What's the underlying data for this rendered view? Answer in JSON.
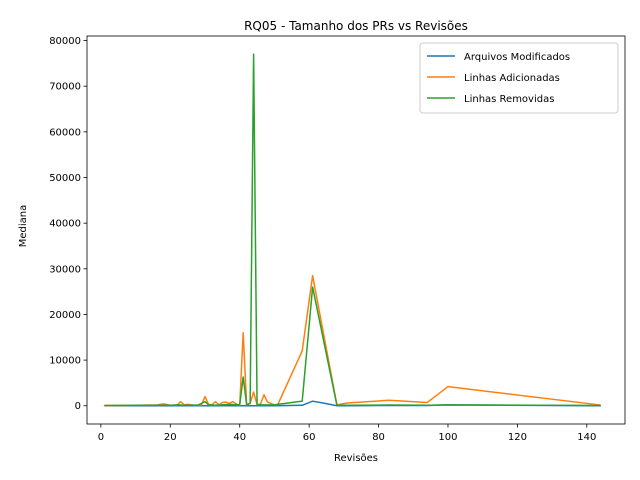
{
  "chart_data": {
    "type": "line",
    "title": "RQ05 - Tamanho dos PRs vs Revisões",
    "xlabel": "Revisões",
    "ylabel": "Mediana",
    "xlim": [
      -4,
      151
    ],
    "ylim": [
      -4000,
      81000
    ],
    "xticks": [
      0,
      20,
      40,
      60,
      80,
      100,
      120,
      140
    ],
    "yticks": [
      0,
      10000,
      20000,
      30000,
      40000,
      50000,
      60000,
      70000,
      80000
    ],
    "grid": false,
    "legend_position": "top-right",
    "series": [
      {
        "name": "Arquivos Modificados",
        "color": "#1f77b4",
        "points": [
          [
            1,
            0
          ],
          [
            10,
            0
          ],
          [
            20,
            0
          ],
          [
            30,
            0
          ],
          [
            40,
            0
          ],
          [
            44,
            0
          ],
          [
            50,
            0
          ],
          [
            58,
            100
          ],
          [
            61,
            1000
          ],
          [
            64,
            600
          ],
          [
            68,
            0
          ],
          [
            71,
            0
          ],
          [
            83,
            50
          ],
          [
            94,
            50
          ],
          [
            100,
            200
          ],
          [
            144,
            0
          ]
        ]
      },
      {
        "name": "Linhas Adicionadas",
        "color": "#ff7f0e",
        "points": [
          [
            1,
            50
          ],
          [
            10,
            100
          ],
          [
            16,
            150
          ],
          [
            18,
            400
          ],
          [
            20,
            100
          ],
          [
            22,
            150
          ],
          [
            23,
            900
          ],
          [
            24,
            200
          ],
          [
            25,
            300
          ],
          [
            27,
            100
          ],
          [
            29,
            200
          ],
          [
            30,
            2000
          ],
          [
            31,
            300
          ],
          [
            32,
            200
          ],
          [
            33,
            900
          ],
          [
            34,
            200
          ],
          [
            35,
            700
          ],
          [
            36,
            800
          ],
          [
            37,
            500
          ],
          [
            38,
            900
          ],
          [
            39,
            400
          ],
          [
            40,
            100
          ],
          [
            41,
            16000
          ],
          [
            42,
            200
          ],
          [
            43,
            500
          ],
          [
            44,
            3000
          ],
          [
            45,
            200
          ],
          [
            46,
            400
          ],
          [
            47,
            2400
          ],
          [
            48,
            800
          ],
          [
            50,
            200
          ],
          [
            51,
            300
          ],
          [
            58,
            12000
          ],
          [
            61,
            28500
          ],
          [
            68,
            200
          ],
          [
            71,
            600
          ],
          [
            83,
            1200
          ],
          [
            94,
            700
          ],
          [
            100,
            4200
          ],
          [
            144,
            150
          ]
        ]
      },
      {
        "name": "Linhas Removidas",
        "color": "#2ca02c",
        "points": [
          [
            1,
            50
          ],
          [
            10,
            100
          ],
          [
            20,
            100
          ],
          [
            22,
            200
          ],
          [
            24,
            100
          ],
          [
            28,
            150
          ],
          [
            30,
            900
          ],
          [
            31,
            200
          ],
          [
            33,
            100
          ],
          [
            37,
            300
          ],
          [
            40,
            200
          ],
          [
            41,
            6300
          ],
          [
            42,
            200
          ],
          [
            43,
            500
          ],
          [
            44,
            77000
          ],
          [
            45,
            300
          ],
          [
            46,
            200
          ],
          [
            50,
            200
          ],
          [
            52,
            400
          ],
          [
            58,
            1000
          ],
          [
            61,
            26000
          ],
          [
            68,
            100
          ],
          [
            71,
            100
          ],
          [
            83,
            150
          ],
          [
            94,
            100
          ],
          [
            100,
            200
          ],
          [
            144,
            50
          ]
        ]
      }
    ]
  }
}
